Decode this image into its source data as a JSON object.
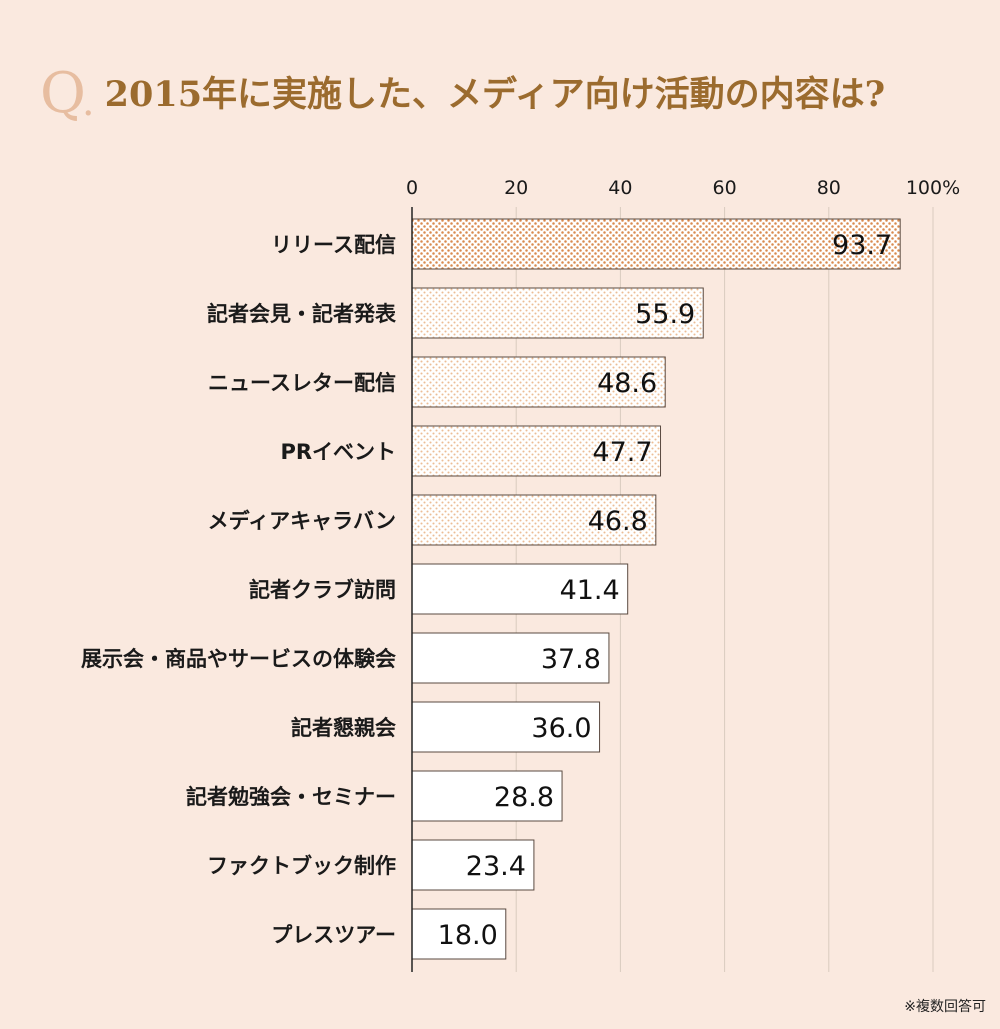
{
  "title": {
    "q_letter": "Q",
    "q_dot": ".",
    "text": "2015年に実施した、メディア向け活動の内容は?"
  },
  "footnote": "※複数回答可",
  "colors": {
    "background": "#fae9df",
    "dot_dark": "#d98a4f",
    "dot_medium": "#ecbd96",
    "bar_border": "#5a4a40",
    "grid": "#d9cbbf"
  },
  "chart_data": {
    "type": "bar",
    "orientation": "horizontal",
    "categories": [
      "リリース配信",
      "記者会見・記者発表",
      "ニュースレター配信",
      "PRイベント",
      "メディアキャラバン",
      "記者クラブ訪問",
      "展示会・商品やサービスの体験会",
      "記者懇親会",
      "記者勉強会・セミナー",
      "ファクトブック制作",
      "プレスツアー"
    ],
    "values": [
      93.7,
      55.9,
      48.6,
      47.7,
      46.8,
      41.4,
      37.8,
      36.0,
      28.8,
      23.4,
      18.0
    ],
    "value_labels": [
      "93.7",
      "55.9",
      "48.6",
      "47.7",
      "46.8",
      "41.4",
      "37.8",
      "36.0",
      "28.8",
      "23.4",
      "18.0"
    ],
    "fill_styles": [
      "dots-dark",
      "dots-medium",
      "dots-medium",
      "dots-medium",
      "dots-medium",
      "plain",
      "plain",
      "plain",
      "plain",
      "plain",
      "plain"
    ],
    "xlim": [
      0,
      100
    ],
    "ticks": [
      0,
      20,
      40,
      60,
      80,
      100
    ],
    "tick_labels": [
      "0",
      "20",
      "40",
      "60",
      "80",
      "100%"
    ],
    "grid": true
  }
}
